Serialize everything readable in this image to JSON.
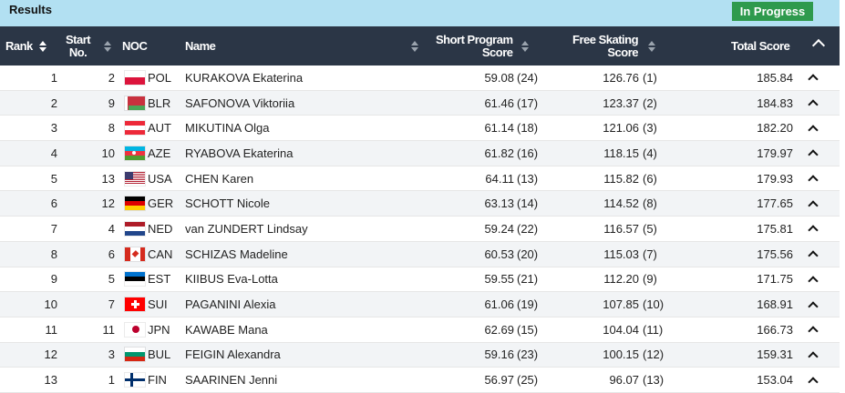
{
  "header": {
    "title": "Results",
    "status": "In Progress",
    "status_color": "#2e9a4d"
  },
  "columns": {
    "rank": "Rank",
    "start_1": "Start",
    "start_2": "No.",
    "noc": "NOC",
    "name": "Name",
    "sp_1": "Short Program",
    "sp_2": "Score",
    "fs_1": "Free Skating",
    "fs_2": "Score",
    "total": "Total Score"
  },
  "rows": [
    {
      "rank": "1",
      "start": "2",
      "noc": "POL",
      "name": "KURAKOVA Ekaterina",
      "sp": "59.08",
      "sp_rank": "(24)",
      "fs": "126.76",
      "fs_rank": "(1)",
      "total": "185.84"
    },
    {
      "rank": "2",
      "start": "9",
      "noc": "BLR",
      "name": "SAFONOVA Viktoriia",
      "sp": "61.46",
      "sp_rank": "(17)",
      "fs": "123.37",
      "fs_rank": "(2)",
      "total": "184.83"
    },
    {
      "rank": "3",
      "start": "8",
      "noc": "AUT",
      "name": "MIKUTINA Olga",
      "sp": "61.14",
      "sp_rank": "(18)",
      "fs": "121.06",
      "fs_rank": "(3)",
      "total": "182.20"
    },
    {
      "rank": "4",
      "start": "10",
      "noc": "AZE",
      "name": "RYABOVA Ekaterina",
      "sp": "61.82",
      "sp_rank": "(16)",
      "fs": "118.15",
      "fs_rank": "(4)",
      "total": "179.97"
    },
    {
      "rank": "5",
      "start": "13",
      "noc": "USA",
      "name": "CHEN Karen",
      "sp": "64.11",
      "sp_rank": "(13)",
      "fs": "115.82",
      "fs_rank": "(6)",
      "total": "179.93"
    },
    {
      "rank": "6",
      "start": "12",
      "noc": "GER",
      "name": "SCHOTT Nicole",
      "sp": "63.13",
      "sp_rank": "(14)",
      "fs": "114.52",
      "fs_rank": "(8)",
      "total": "177.65"
    },
    {
      "rank": "7",
      "start": "4",
      "noc": "NED",
      "name": "van ZUNDERT Lindsay",
      "sp": "59.24",
      "sp_rank": "(22)",
      "fs": "116.57",
      "fs_rank": "(5)",
      "total": "175.81"
    },
    {
      "rank": "8",
      "start": "6",
      "noc": "CAN",
      "name": "SCHIZAS Madeline",
      "sp": "60.53",
      "sp_rank": "(20)",
      "fs": "115.03",
      "fs_rank": "(7)",
      "total": "175.56"
    },
    {
      "rank": "9",
      "start": "5",
      "noc": "EST",
      "name": "KIIBUS Eva-Lotta",
      "sp": "59.55",
      "sp_rank": "(21)",
      "fs": "112.20",
      "fs_rank": "(9)",
      "total": "171.75"
    },
    {
      "rank": "10",
      "start": "7",
      "noc": "SUI",
      "name": "PAGANINI Alexia",
      "sp": "61.06",
      "sp_rank": "(19)",
      "fs": "107.85",
      "fs_rank": "(10)",
      "total": "168.91"
    },
    {
      "rank": "11",
      "start": "11",
      "noc": "JPN",
      "name": "KAWABE Mana",
      "sp": "62.69",
      "sp_rank": "(15)",
      "fs": "104.04",
      "fs_rank": "(11)",
      "total": "166.73"
    },
    {
      "rank": "12",
      "start": "3",
      "noc": "BUL",
      "name": "FEIGIN Alexandra",
      "sp": "59.16",
      "sp_rank": "(23)",
      "fs": "100.15",
      "fs_rank": "(12)",
      "total": "159.31"
    },
    {
      "rank": "13",
      "start": "1",
      "noc": "FIN",
      "name": "SAARINEN Jenni",
      "sp": "56.97",
      "sp_rank": "(25)",
      "fs": "96.07",
      "fs_rank": "(13)",
      "total": "153.04"
    }
  ]
}
